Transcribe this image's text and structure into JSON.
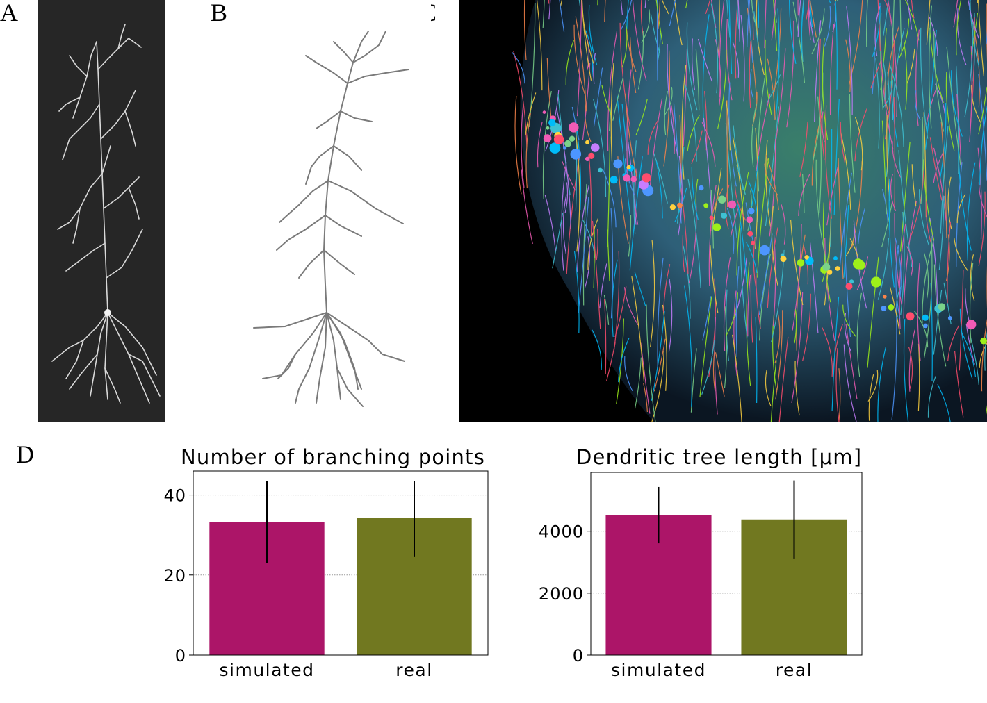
{
  "panels": {
    "a_label": "A",
    "b_label": "B",
    "c_label": "C",
    "d_label": "D"
  },
  "chart_data": [
    {
      "type": "bar",
      "title": "Number of branching points",
      "categories": [
        "simulated",
        "real"
      ],
      "values": [
        33.3,
        34.2
      ],
      "errors": [
        [
          23,
          43.5
        ],
        [
          24.5,
          43.5
        ]
      ],
      "colors": [
        "#ac1568",
        "#717820"
      ],
      "yticks": [
        0,
        20,
        40
      ],
      "ylim": [
        0,
        46
      ],
      "grid": true,
      "xlabel": "",
      "ylabel": ""
    },
    {
      "type": "bar",
      "title": "Dendritic tree length [μm]",
      "categories": [
        "simulated",
        "real"
      ],
      "values": [
        4520,
        4380
      ],
      "errors": [
        [
          3610,
          5430
        ],
        [
          3120,
          5640
        ]
      ],
      "colors": [
        "#ac1568",
        "#717820"
      ],
      "yticks": [
        0,
        2000,
        4000
      ],
      "ylim": [
        0,
        5900
      ],
      "grid": true,
      "xlabel": "",
      "ylabel": ""
    }
  ]
}
